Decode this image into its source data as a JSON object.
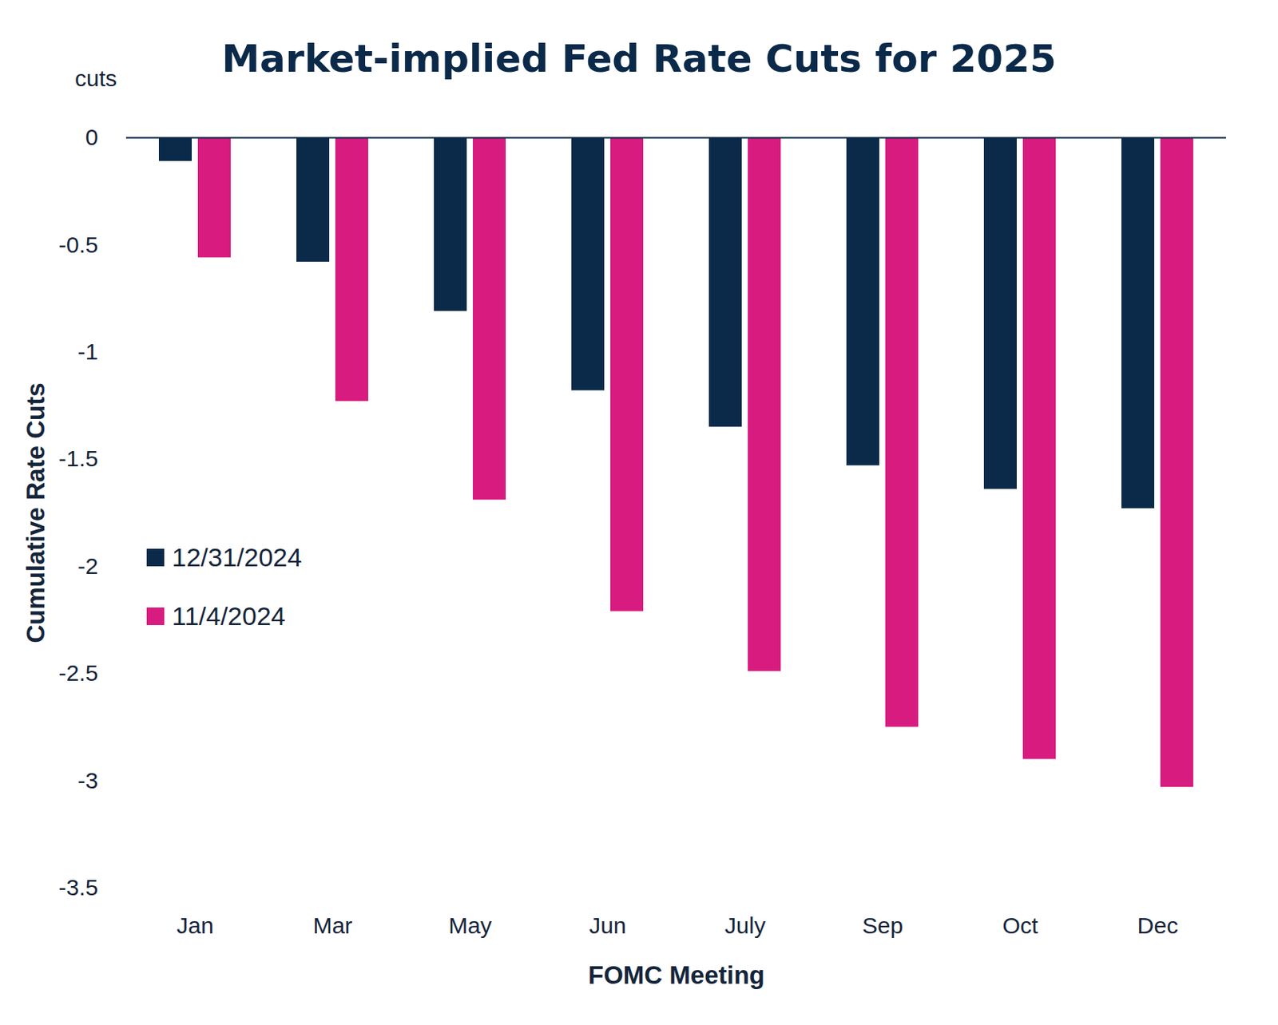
{
  "chart_data": {
    "type": "bar",
    "title": "Market-implied Fed Rate Cuts for 2025",
    "annotations": [
      "cuts"
    ],
    "x_label": "FOMC Meeting",
    "y_label": "Cumulative Rate Cuts",
    "categories": [
      "Jan",
      "Mar",
      "May",
      "Jun",
      "July",
      "Sep",
      "Oct",
      "Dec"
    ],
    "series": [
      {
        "name": "12/31/2024",
        "color": "#0b2a4a",
        "values": [
          -0.11,
          -0.58,
          -0.81,
          -1.18,
          -1.35,
          -1.53,
          -1.64,
          -1.73
        ]
      },
      {
        "name": "11/4/2024",
        "color": "#d81b7f",
        "values": [
          -0.56,
          -1.23,
          -1.69,
          -2.21,
          -2.49,
          -2.75,
          -2.9,
          -3.03
        ]
      }
    ],
    "ylim": [
      -3.5,
      0
    ],
    "yticks": [
      0,
      -0.5,
      -1,
      -1.5,
      -2,
      -2.5,
      -3,
      -3.5
    ],
    "grid": false,
    "legend": "left"
  }
}
